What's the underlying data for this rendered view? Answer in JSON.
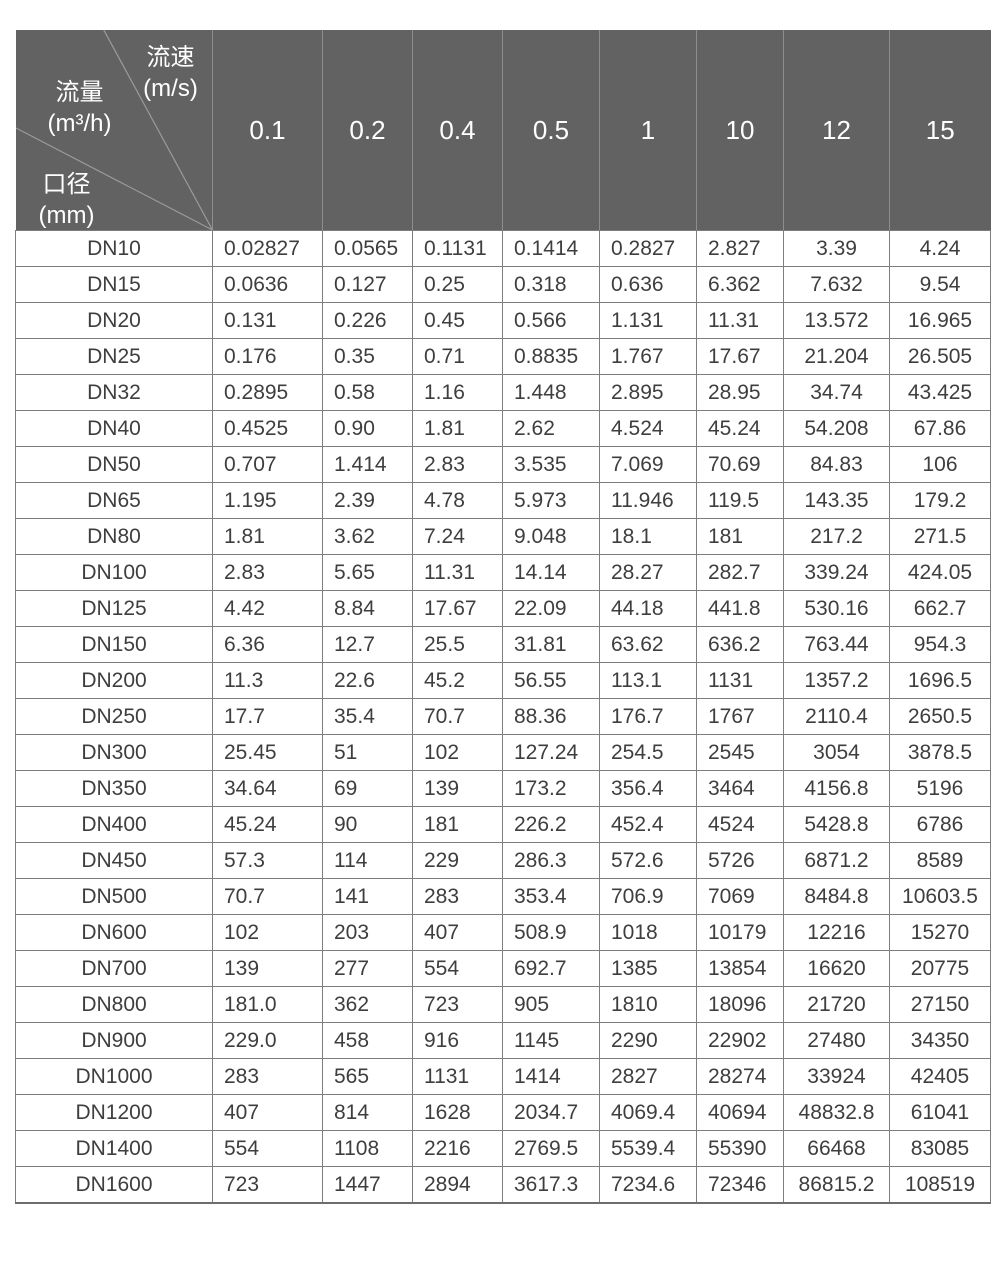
{
  "colors": {
    "header_bg": "#626262",
    "header_text": "#ffffff",
    "header_divider": "#8e8e8e",
    "diagonal_line": "#9b9b9b",
    "grid_line": "#7d7d7d",
    "body_text": "#3e3e3e",
    "page_bg": "#ffffff"
  },
  "chart_data": {
    "type": "table",
    "corner": {
      "velocity_label": "流速",
      "velocity_unit": "(m/s)",
      "flow_label": "流量",
      "flow_unit": "(m³/h)",
      "diameter_label": "口径",
      "diameter_unit": "(mm)"
    },
    "velocity_columns": [
      "0.1",
      "0.2",
      "0.4",
      "0.5",
      "1",
      "10",
      "12",
      "15"
    ],
    "rows": [
      {
        "dn": "DN10",
        "values": [
          "0.02827",
          "0.0565",
          "0.1131",
          "0.1414",
          "0.2827",
          "2.827",
          "3.39",
          "4.24"
        ]
      },
      {
        "dn": "DN15",
        "values": [
          "0.0636",
          "0.127",
          "0.25",
          "0.318",
          "0.636",
          "6.362",
          "7.632",
          "9.54"
        ]
      },
      {
        "dn": "DN20",
        "values": [
          "0.131",
          "0.226",
          "0.45",
          "0.566",
          "1.131",
          "11.31",
          "13.572",
          "16.965"
        ]
      },
      {
        "dn": "DN25",
        "values": [
          "0.176",
          "0.35",
          "0.71",
          "0.8835",
          "1.767",
          "17.67",
          "21.204",
          "26.505"
        ]
      },
      {
        "dn": "DN32",
        "values": [
          "0.2895",
          "0.58",
          "1.16",
          "1.448",
          "2.895",
          "28.95",
          "34.74",
          "43.425"
        ]
      },
      {
        "dn": "DN40",
        "values": [
          "0.4525",
          "0.90",
          "1.81",
          "2.62",
          "4.524",
          "45.24",
          "54.208",
          "67.86"
        ]
      },
      {
        "dn": "DN50",
        "values": [
          "0.707",
          "1.414",
          "2.83",
          "3.535",
          "7.069",
          "70.69",
          "84.83",
          "106"
        ]
      },
      {
        "dn": "DN65",
        "values": [
          "1.195",
          "2.39",
          "4.78",
          "5.973",
          "11.946",
          "119.5",
          "143.35",
          "179.2"
        ]
      },
      {
        "dn": "DN80",
        "values": [
          "1.81",
          "3.62",
          "7.24",
          "9.048",
          "18.1",
          "181",
          "217.2",
          "271.5"
        ]
      },
      {
        "dn": "DN100",
        "values": [
          "2.83",
          "5.65",
          "11.31",
          "14.14",
          "28.27",
          "282.7",
          "339.24",
          "424.05"
        ]
      },
      {
        "dn": "DN125",
        "values": [
          "4.42",
          "8.84",
          "17.67",
          "22.09",
          "44.18",
          "441.8",
          "530.16",
          "662.7"
        ]
      },
      {
        "dn": "DN150",
        "values": [
          "6.36",
          "12.7",
          "25.5",
          "31.81",
          "63.62",
          "636.2",
          "763.44",
          "954.3"
        ]
      },
      {
        "dn": "DN200",
        "values": [
          "11.3",
          "22.6",
          "45.2",
          "56.55",
          "113.1",
          "1131",
          "1357.2",
          "1696.5"
        ]
      },
      {
        "dn": "DN250",
        "values": [
          "17.7",
          "35.4",
          "70.7",
          "88.36",
          "176.7",
          "1767",
          "2110.4",
          "2650.5"
        ]
      },
      {
        "dn": "DN300",
        "values": [
          "25.45",
          "51",
          "102",
          "127.24",
          "254.5",
          "2545",
          "3054",
          "3878.5"
        ]
      },
      {
        "dn": "DN350",
        "values": [
          "34.64",
          "69",
          "139",
          "173.2",
          "356.4",
          "3464",
          "4156.8",
          "5196"
        ]
      },
      {
        "dn": "DN400",
        "values": [
          "45.24",
          "90",
          "181",
          "226.2",
          "452.4",
          "4524",
          "5428.8",
          "6786"
        ]
      },
      {
        "dn": "DN450",
        "values": [
          "57.3",
          "114",
          "229",
          "286.3",
          "572.6",
          "5726",
          "6871.2",
          "8589"
        ]
      },
      {
        "dn": "DN500",
        "values": [
          "70.7",
          "141",
          "283",
          "353.4",
          "706.9",
          "7069",
          "8484.8",
          "10603.5"
        ]
      },
      {
        "dn": "DN600",
        "values": [
          "102",
          "203",
          "407",
          "508.9",
          "1018",
          "10179",
          "12216",
          "15270"
        ]
      },
      {
        "dn": "DN700",
        "values": [
          "139",
          "277",
          "554",
          "692.7",
          "1385",
          "13854",
          "16620",
          "20775"
        ]
      },
      {
        "dn": "DN800",
        "values": [
          "181.0",
          "362",
          "723",
          "905",
          "1810",
          "18096",
          "21720",
          "27150"
        ]
      },
      {
        "dn": "DN900",
        "values": [
          "229.0",
          "458",
          "916",
          "1145",
          "2290",
          "22902",
          "27480",
          "34350"
        ]
      },
      {
        "dn": "DN1000",
        "values": [
          "283",
          "565",
          "1131",
          "1414",
          "2827",
          "28274",
          "33924",
          "42405"
        ]
      },
      {
        "dn": "DN1200",
        "values": [
          "407",
          "814",
          "1628",
          "2034.7",
          "4069.4",
          "40694",
          "48832.8",
          "61041"
        ]
      },
      {
        "dn": "DN1400",
        "values": [
          "554",
          "1108",
          "2216",
          "2769.5",
          "5539.4",
          "55390",
          "66468",
          "83085"
        ]
      },
      {
        "dn": "DN1600",
        "values": [
          "723",
          "1447",
          "2894",
          "3617.3",
          "7234.6",
          "72346",
          "86815.2",
          "108519"
        ]
      }
    ]
  }
}
